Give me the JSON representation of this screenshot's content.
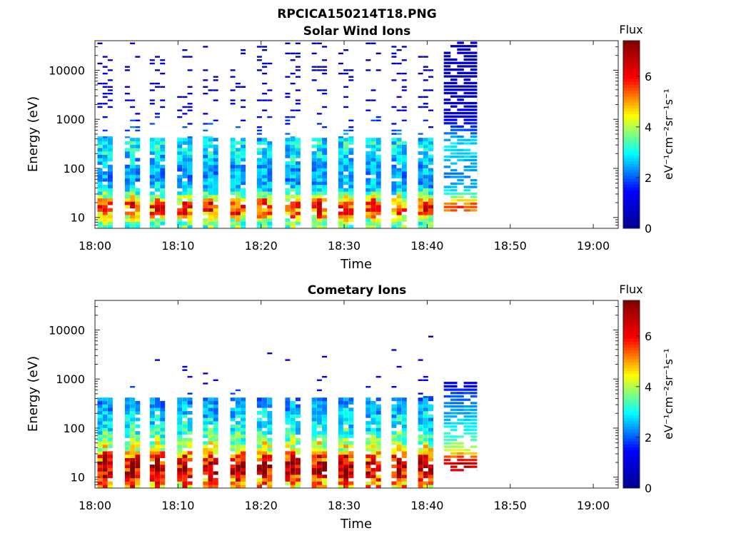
{
  "figure": {
    "title": "RPCICA150214T18.PNG"
  },
  "colormap": {
    "name": "jet",
    "stops": [
      "#00008f",
      "#0000ff",
      "#00ffff",
      "#ffff00",
      "#ff0000",
      "#800000"
    ]
  },
  "chart_data": [
    {
      "type": "heatmap",
      "title": "Solar Wind Ions",
      "xlabel": "Time",
      "ylabel": "Energy (eV)",
      "xscale": "time",
      "xlim": [
        "18:00",
        "19:03"
      ],
      "xticks": [
        "18:00",
        "18:10",
        "18:20",
        "18:30",
        "18:40",
        "18:50",
        "19:00"
      ],
      "yscale": "log",
      "ylim": [
        6,
        40000
      ],
      "yticks": [
        10,
        100,
        1000,
        10000
      ],
      "ytick_labels": [
        "10",
        "100",
        "1000",
        "10000"
      ],
      "colorbar": {
        "label": "Flux",
        "units": "eV⁻¹cm⁻²sr⁻¹s⁻¹",
        "range": [
          0,
          7.4
        ],
        "ticks": [
          0,
          2,
          4,
          6
        ],
        "tick_labels": [
          "0",
          "2",
          "4",
          "6"
        ]
      },
      "grid": false,
      "data_extent": [
        "18:00",
        "18:46"
      ],
      "sweep_minutes": [
        0.3,
        3.6,
        6.6,
        9.9,
        13.0,
        16.3,
        19.5,
        22.9,
        26.1,
        29.3,
        32.6,
        35.7,
        38.9
      ],
      "continuous_start": "18:42",
      "profile": [
        [
          8,
          3.5
        ],
        [
          12,
          5.2
        ],
        [
          18,
          5.8
        ],
        [
          25,
          4.0
        ],
        [
          40,
          2.6
        ],
        [
          70,
          2.3
        ],
        [
          150,
          2.6
        ],
        [
          300,
          3.0
        ],
        [
          600,
          2.0
        ],
        [
          1500,
          1.2
        ],
        [
          5000,
          0.9
        ],
        [
          20000,
          0.7
        ],
        [
          40000,
          0.6
        ]
      ]
    },
    {
      "type": "heatmap",
      "title": "Cometary Ions",
      "xlabel": "Time",
      "ylabel": "Energy (eV)",
      "xscale": "time",
      "xlim": [
        "18:00",
        "19:03"
      ],
      "xticks": [
        "18:00",
        "18:10",
        "18:20",
        "18:30",
        "18:40",
        "18:50",
        "19:00"
      ],
      "yscale": "log",
      "ylim": [
        6,
        40000
      ],
      "yticks": [
        10,
        100,
        1000,
        10000
      ],
      "ytick_labels": [
        "10",
        "100",
        "1000",
        "10000"
      ],
      "colorbar": {
        "label": "Flux",
        "units": "eV⁻¹cm⁻²sr⁻¹s⁻¹",
        "range": [
          0,
          7.4
        ],
        "ticks": [
          0,
          2,
          4,
          6
        ],
        "tick_labels": [
          "0",
          "2",
          "4",
          "6"
        ]
      },
      "grid": false,
      "data_extent": [
        "18:00",
        "18:46"
      ],
      "sweep_minutes": [
        0.3,
        3.6,
        6.6,
        9.9,
        13.0,
        16.3,
        19.5,
        22.9,
        26.1,
        29.3,
        32.6,
        35.7,
        38.9
      ],
      "continuous_start": "18:42",
      "profile": [
        [
          8,
          5.0
        ],
        [
          12,
          6.5
        ],
        [
          18,
          6.8
        ],
        [
          25,
          5.8
        ],
        [
          35,
          4.5
        ],
        [
          60,
          3.5
        ],
        [
          100,
          3.0
        ],
        [
          200,
          2.6
        ],
        [
          400,
          2.2
        ],
        [
          700,
          1.5
        ],
        [
          1500,
          1.0
        ],
        [
          3000,
          0.8
        ],
        [
          30000,
          0.6
        ]
      ]
    }
  ]
}
